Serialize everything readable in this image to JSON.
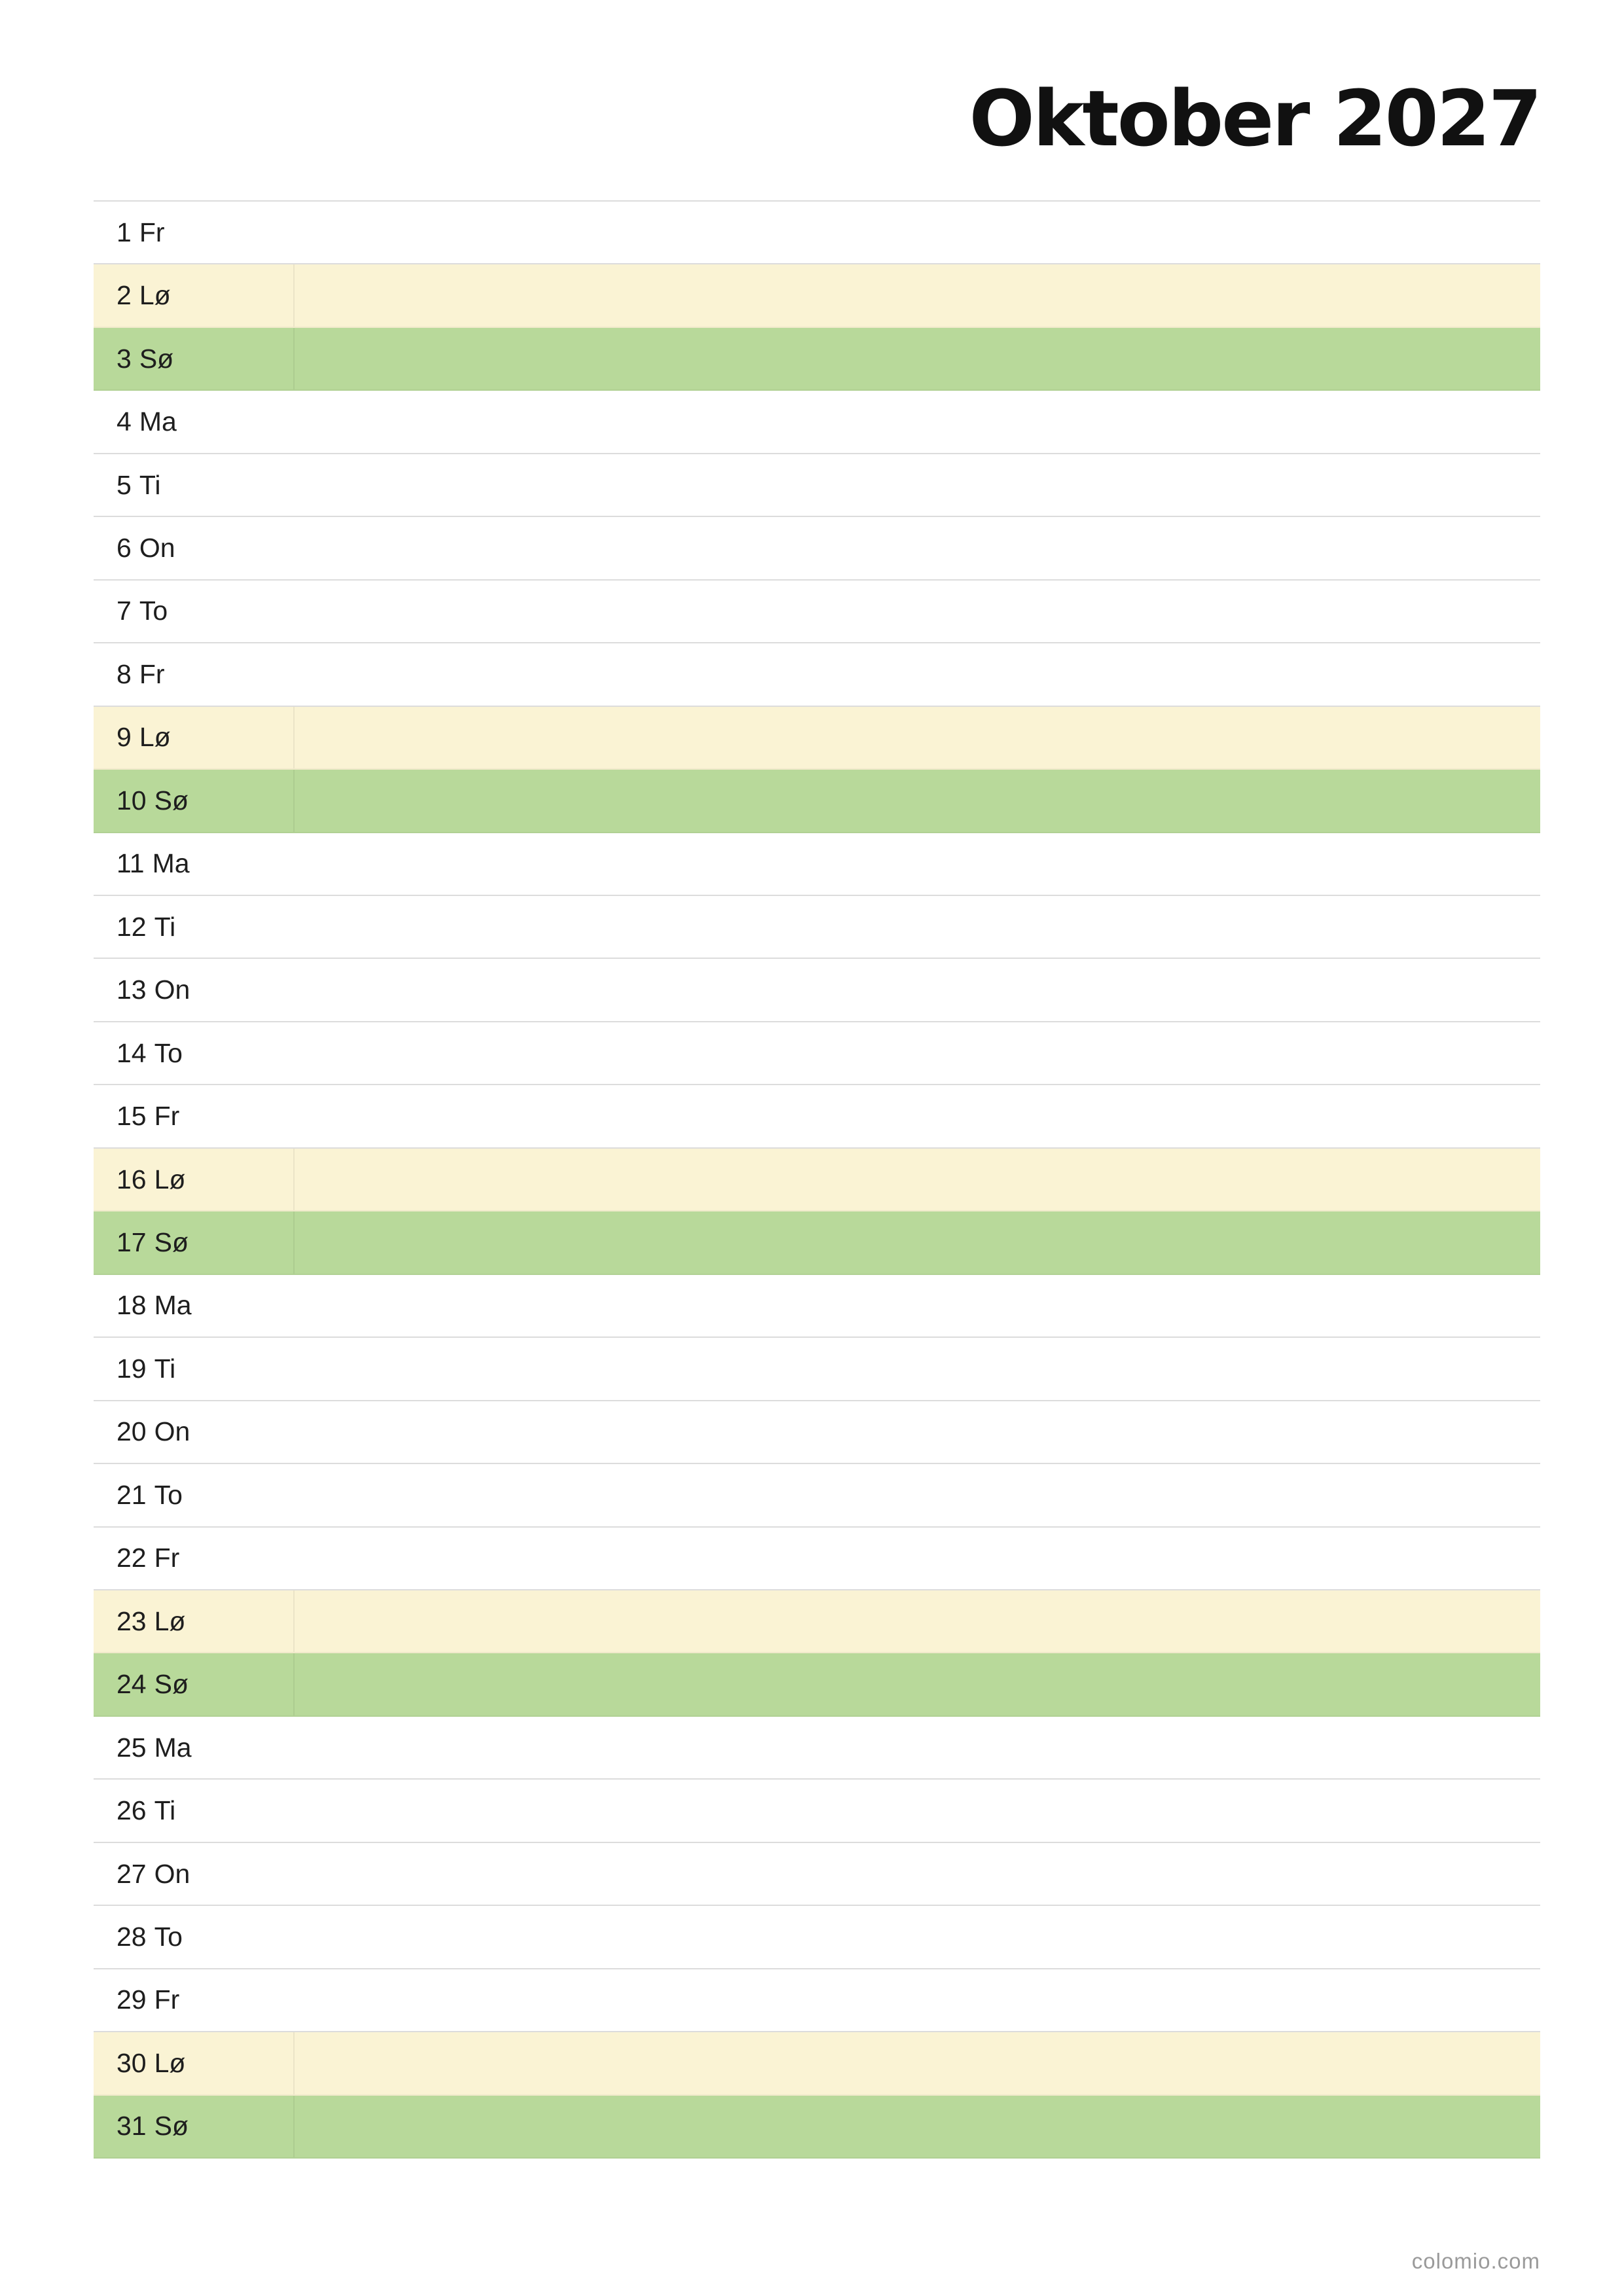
{
  "title": "Oktober 2027",
  "colors": {
    "saturday_row": "#faf3d4",
    "sunday_row": "#b8d99a",
    "row_divider": "#dcdcdc",
    "footer_text": "#9a9a9a"
  },
  "days": [
    {
      "day": "1",
      "weekday": "Fr",
      "type": "weekday"
    },
    {
      "day": "2",
      "weekday": "Lø",
      "type": "sat"
    },
    {
      "day": "3",
      "weekday": "Sø",
      "type": "sun"
    },
    {
      "day": "4",
      "weekday": "Ma",
      "type": "weekday"
    },
    {
      "day": "5",
      "weekday": "Ti",
      "type": "weekday"
    },
    {
      "day": "6",
      "weekday": "On",
      "type": "weekday"
    },
    {
      "day": "7",
      "weekday": "To",
      "type": "weekday"
    },
    {
      "day": "8",
      "weekday": "Fr",
      "type": "weekday"
    },
    {
      "day": "9",
      "weekday": "Lø",
      "type": "sat"
    },
    {
      "day": "10",
      "weekday": "Sø",
      "type": "sun"
    },
    {
      "day": "11",
      "weekday": "Ma",
      "type": "weekday"
    },
    {
      "day": "12",
      "weekday": "Ti",
      "type": "weekday"
    },
    {
      "day": "13",
      "weekday": "On",
      "type": "weekday"
    },
    {
      "day": "14",
      "weekday": "To",
      "type": "weekday"
    },
    {
      "day": "15",
      "weekday": "Fr",
      "type": "weekday"
    },
    {
      "day": "16",
      "weekday": "Lø",
      "type": "sat"
    },
    {
      "day": "17",
      "weekday": "Sø",
      "type": "sun"
    },
    {
      "day": "18",
      "weekday": "Ma",
      "type": "weekday"
    },
    {
      "day": "19",
      "weekday": "Ti",
      "type": "weekday"
    },
    {
      "day": "20",
      "weekday": "On",
      "type": "weekday"
    },
    {
      "day": "21",
      "weekday": "To",
      "type": "weekday"
    },
    {
      "day": "22",
      "weekday": "Fr",
      "type": "weekday"
    },
    {
      "day": "23",
      "weekday": "Lø",
      "type": "sat"
    },
    {
      "day": "24",
      "weekday": "Sø",
      "type": "sun"
    },
    {
      "day": "25",
      "weekday": "Ma",
      "type": "weekday"
    },
    {
      "day": "26",
      "weekday": "Ti",
      "type": "weekday"
    },
    {
      "day": "27",
      "weekday": "On",
      "type": "weekday"
    },
    {
      "day": "28",
      "weekday": "To",
      "type": "weekday"
    },
    {
      "day": "29",
      "weekday": "Fr",
      "type": "weekday"
    },
    {
      "day": "30",
      "weekday": "Lø",
      "type": "sat"
    },
    {
      "day": "31",
      "weekday": "Sø",
      "type": "sun"
    }
  ],
  "footer": "colomio.com"
}
